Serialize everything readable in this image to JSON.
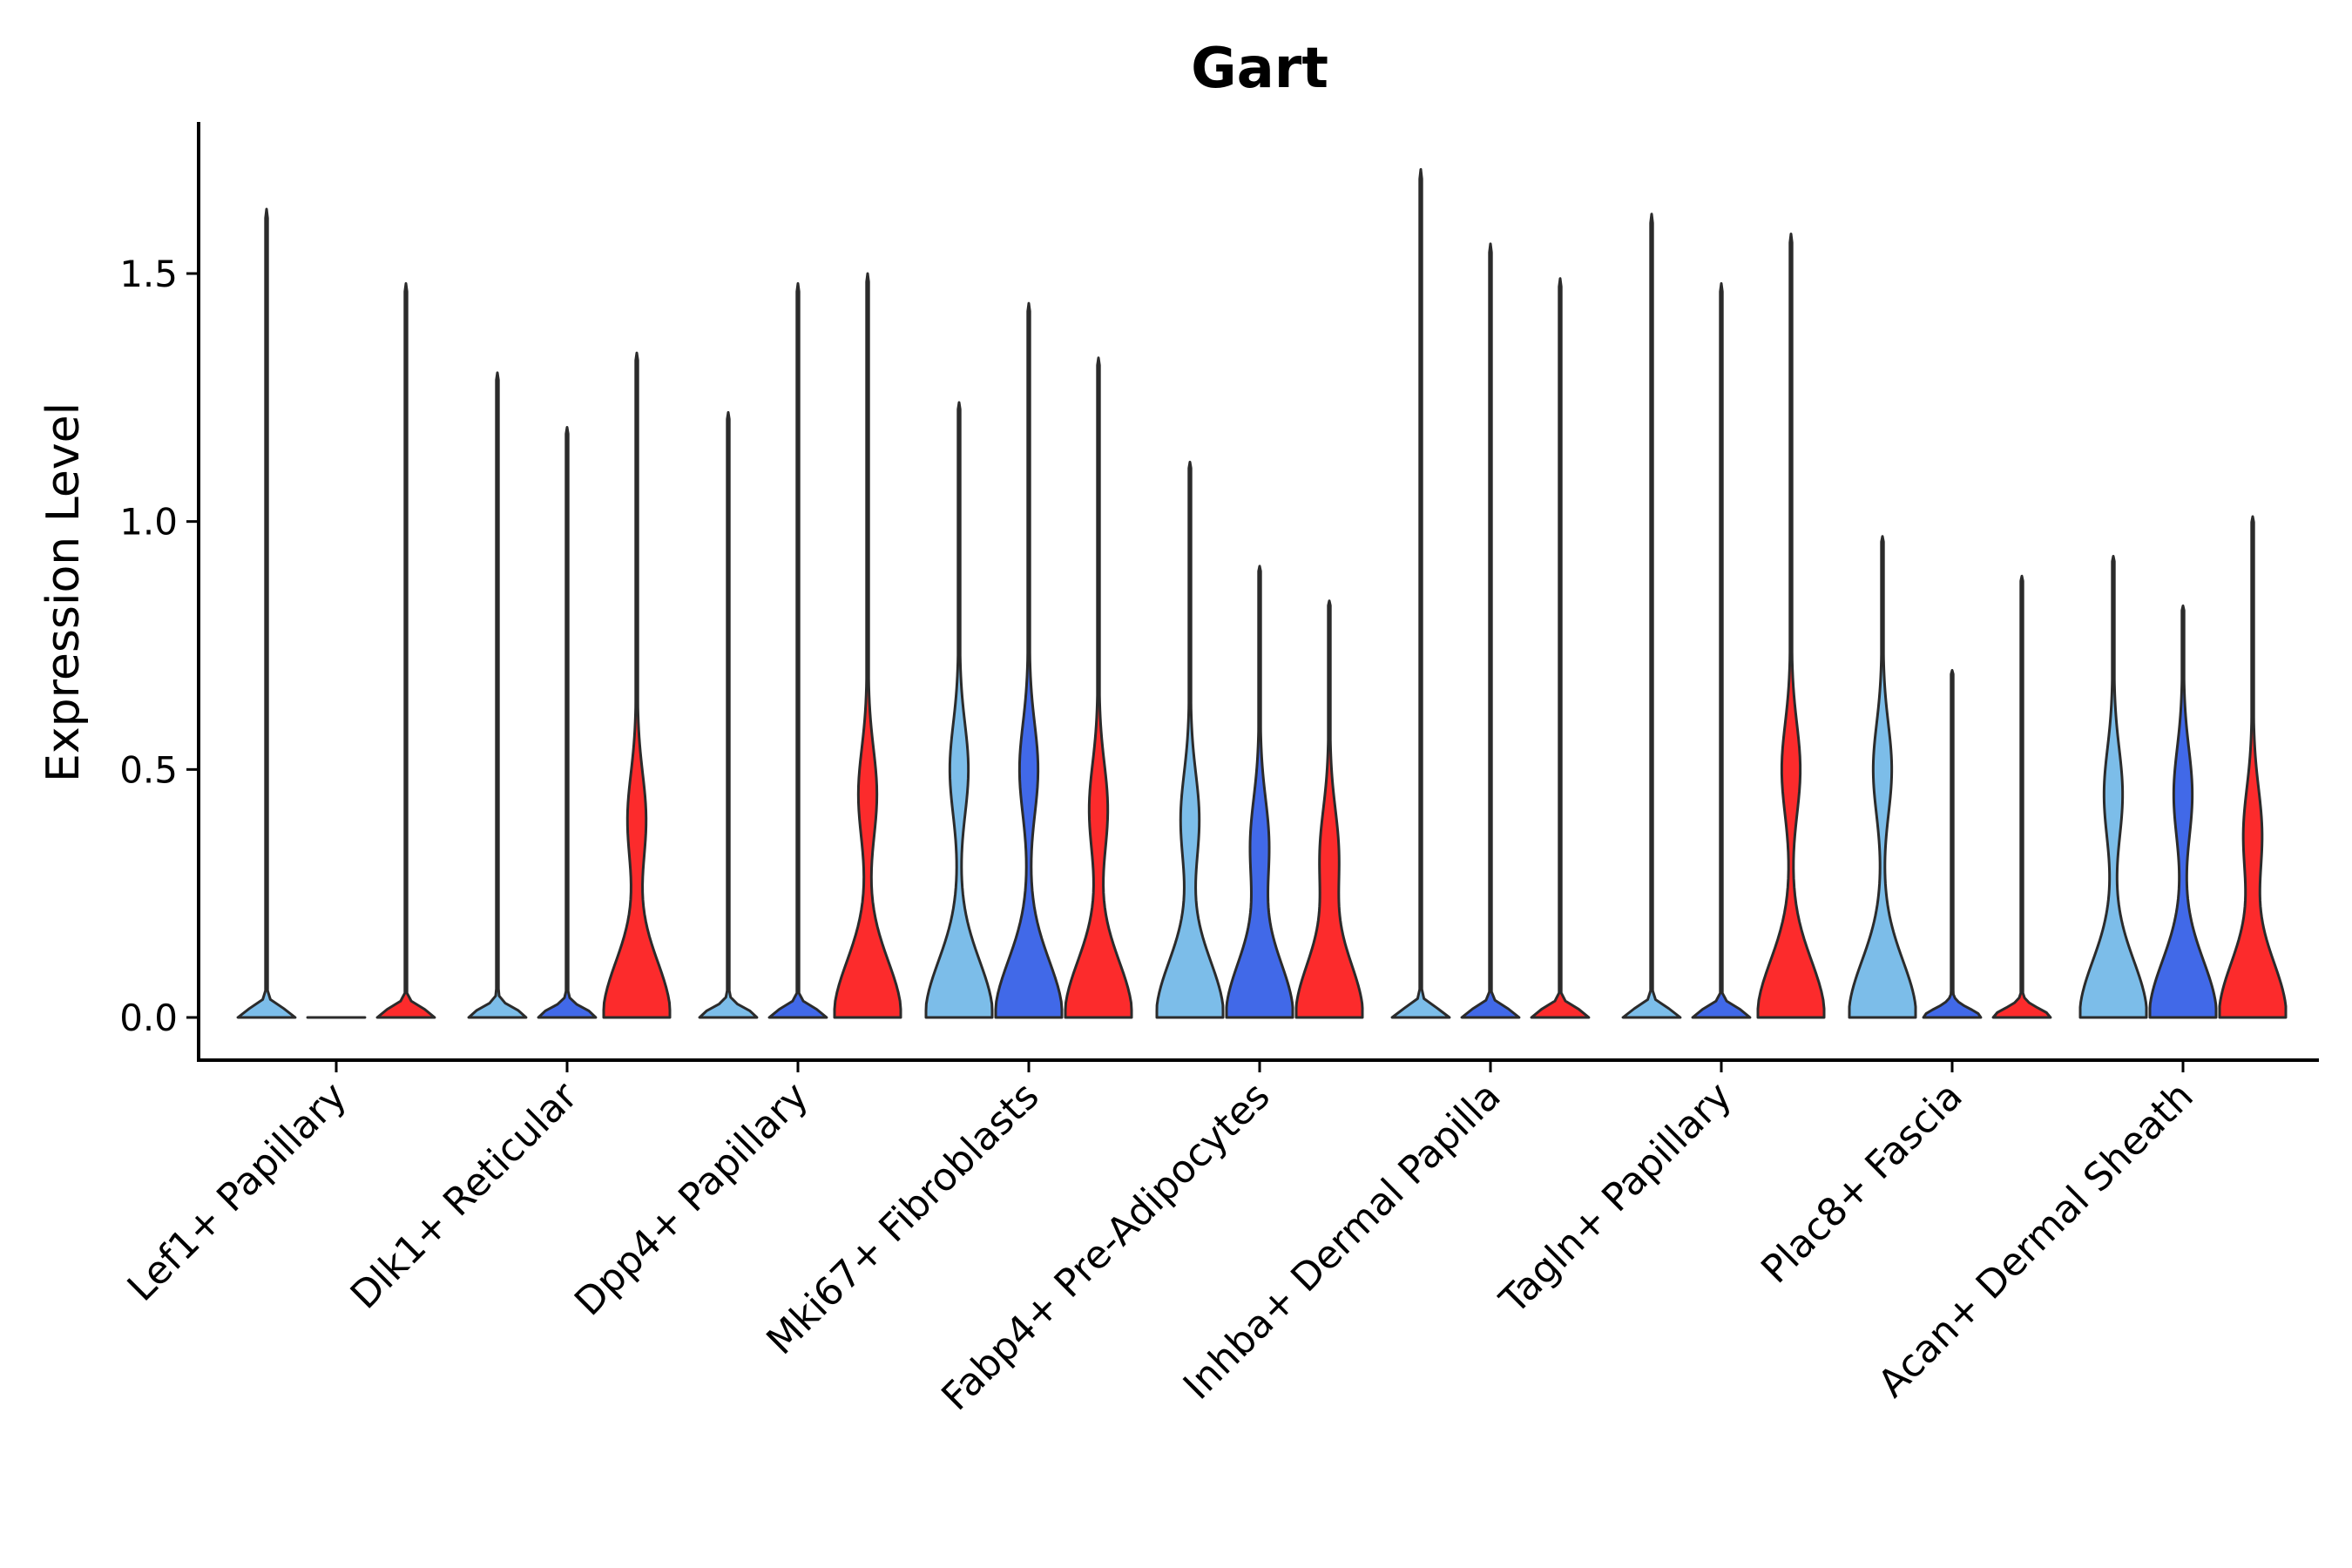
{
  "chart_data": {
    "type": "violin",
    "title": "Gart",
    "xlabel": "",
    "ylabel": "Expression Level",
    "ylim": [
      -0.085,
      1.8
    ],
    "yticks": [
      0.0,
      0.5,
      1.0,
      1.5
    ],
    "ytick_labels": [
      "0.0",
      "0.5",
      "1.0",
      "1.5"
    ],
    "grid": false,
    "legend": "none",
    "group_colors": [
      "#7cbde9",
      "#4169e8",
      "#fc2b2c"
    ],
    "categories": [
      "Lef1+ Papillary",
      "Dlk1+ Reticular",
      "Dpp4+ Papillary",
      "Mki67+ Fibroblasts",
      "Fabp4+ Pre-Adipocytes",
      "Inhba+ Dermal Papilla",
      "Tagln+ Papillary",
      "Plac8+ Fascia",
      "Acan+ Dermal Sheath"
    ],
    "violins": [
      [
        {
          "max": 1.63,
          "shape": "flat"
        },
        {
          "max": 0.0,
          "shape": "flat"
        },
        {
          "max": 1.48,
          "shape": "flat"
        }
      ],
      [
        {
          "max": 1.3,
          "shape": "flat"
        },
        {
          "max": 1.19,
          "shape": "flat"
        },
        {
          "max": 1.34,
          "shape": "bimodal",
          "mid": 0.4
        }
      ],
      [
        {
          "max": 1.22,
          "shape": "flat"
        },
        {
          "max": 1.48,
          "shape": "flat"
        },
        {
          "max": 1.5,
          "shape": "bimodal",
          "mid": 0.45
        }
      ],
      [
        {
          "max": 1.24,
          "shape": "bimodal",
          "mid": 0.5
        },
        {
          "max": 1.44,
          "shape": "bimodal",
          "mid": 0.5
        },
        {
          "max": 1.33,
          "shape": "bimodal",
          "mid": 0.42
        }
      ],
      [
        {
          "max": 1.12,
          "shape": "bimodal",
          "mid": 0.4
        },
        {
          "max": 0.91,
          "shape": "bimodal",
          "mid": 0.35
        },
        {
          "max": 0.84,
          "shape": "bimodal",
          "mid": 0.33
        }
      ],
      [
        {
          "max": 1.71,
          "shape": "flat"
        },
        {
          "max": 1.56,
          "shape": "flat"
        },
        {
          "max": 1.49,
          "shape": "flat"
        }
      ],
      [
        {
          "max": 1.62,
          "shape": "flat"
        },
        {
          "max": 1.48,
          "shape": "flat"
        },
        {
          "max": 1.58,
          "shape": "bimodal",
          "mid": 0.5
        }
      ],
      [
        {
          "max": 0.97,
          "shape": "bimodal",
          "mid": 0.5
        },
        {
          "max": 0.7,
          "shape": "flat"
        },
        {
          "max": 0.89,
          "shape": "flat"
        }
      ],
      [
        {
          "max": 0.93,
          "shape": "bimodal",
          "mid": 0.45
        },
        {
          "max": 0.83,
          "shape": "bimodal",
          "mid": 0.45
        },
        {
          "max": 1.01,
          "shape": "bimodal",
          "mid": 0.37
        }
      ]
    ]
  }
}
